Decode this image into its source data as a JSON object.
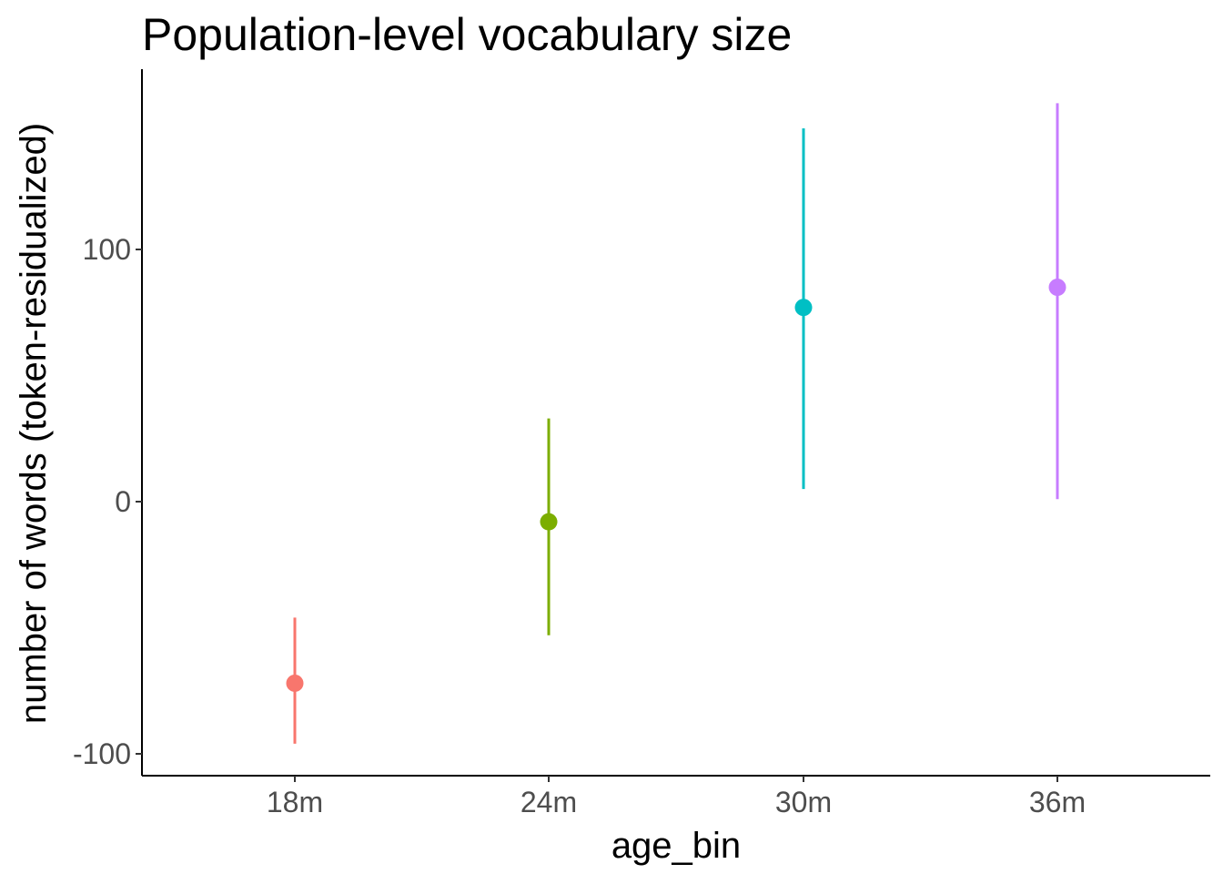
{
  "chart_data": {
    "type": "scatter",
    "title": "Population-level vocabulary size",
    "xlabel": "age_bin",
    "ylabel": "number of words (token-residualized)",
    "categories": [
      "18m",
      "24m",
      "30m",
      "36m"
    ],
    "points": [
      {
        "x": "18m",
        "y": -72,
        "ymin": -96,
        "ymax": -46,
        "color": "#F8766D"
      },
      {
        "x": "24m",
        "y": -8,
        "ymin": -53,
        "ymax": 33,
        "color": "#7CAE00"
      },
      {
        "x": "30m",
        "y": 77,
        "ymin": 5,
        "ymax": 148,
        "color": "#00BFC4"
      },
      {
        "x": "36m",
        "y": 85,
        "ymin": 1,
        "ymax": 158,
        "color": "#C77CFF"
      }
    ],
    "y_ticks": [
      -100,
      0,
      100
    ],
    "y_tick_labels": [
      "-100",
      "0",
      "100"
    ],
    "ylim": [
      -109,
      171
    ],
    "grid": false,
    "legend": "none"
  }
}
